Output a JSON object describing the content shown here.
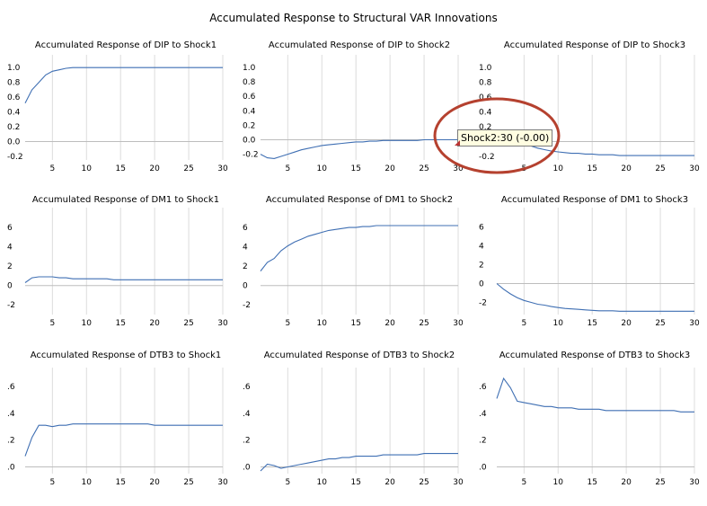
{
  "title": "Accumulated Response to Structural VAR Innovations",
  "tooltip": {
    "text": "Shock2:30  (-0.00)"
  },
  "colors": {
    "line": "#3f6fb3",
    "annotation": "#b5412f",
    "grid": "#dcdcdc",
    "tooltip_bg": "#fffde1"
  },
  "chart_data": [
    {
      "type": "line",
      "title": "Accumulated Response of DIP to Shock1",
      "x": [
        1,
        2,
        3,
        4,
        5,
        6,
        7,
        8,
        9,
        10,
        11,
        12,
        13,
        14,
        15,
        16,
        17,
        18,
        19,
        20,
        21,
        22,
        23,
        24,
        25,
        26,
        27,
        28,
        29,
        30
      ],
      "values": [
        0.52,
        0.7,
        0.8,
        0.9,
        0.95,
        0.97,
        0.99,
        1.0,
        1.0,
        1.0,
        1.0,
        1.0,
        1.0,
        1.0,
        1.0,
        1.0,
        1.0,
        1.0,
        1.0,
        1.0,
        1.0,
        1.0,
        1.0,
        1.0,
        1.0,
        1.0,
        1.0,
        1.0,
        1.0,
        1.0
      ],
      "ylim": [
        -0.25,
        1.1
      ],
      "yticks": [
        -0.2,
        0.0,
        0.2,
        0.4,
        0.6,
        0.8,
        1.0
      ],
      "ytick_labels": [
        "-0.2",
        "0.0",
        "0.2",
        "0.4",
        "0.6",
        "0.8",
        "1.0"
      ],
      "xticks": [
        5,
        10,
        15,
        20,
        25,
        30
      ]
    },
    {
      "type": "line",
      "title": "Accumulated Response of DIP to Shock2",
      "x": [
        1,
        2,
        3,
        4,
        5,
        6,
        7,
        8,
        9,
        10,
        11,
        12,
        13,
        14,
        15,
        16,
        17,
        18,
        19,
        20,
        21,
        22,
        23,
        24,
        25,
        26,
        27,
        28,
        29,
        30
      ],
      "values": [
        -0.2,
        -0.25,
        -0.26,
        -0.23,
        -0.2,
        -0.17,
        -0.14,
        -0.12,
        -0.1,
        -0.08,
        -0.07,
        -0.06,
        -0.05,
        -0.04,
        -0.03,
        -0.03,
        -0.02,
        -0.02,
        -0.01,
        -0.01,
        -0.01,
        -0.01,
        -0.01,
        -0.01,
        0.0,
        0.0,
        0.0,
        0.0,
        0.0,
        0.0
      ],
      "ylim": [
        -0.28,
        1.1
      ],
      "yticks": [
        -0.2,
        0.0,
        0.2,
        0.4,
        0.6,
        0.8,
        1.0
      ],
      "ytick_labels": [
        "-0.2",
        "0.0",
        "0.2",
        "0.4",
        "0.6",
        "0.8",
        "1.0"
      ],
      "xticks": [
        5,
        10,
        15,
        20,
        25,
        30
      ]
    },
    {
      "type": "line",
      "title": "Accumulated Response of DIP to Shock3",
      "x": [
        1,
        2,
        3,
        4,
        5,
        6,
        7,
        8,
        9,
        10,
        11,
        12,
        13,
        14,
        15,
        16,
        17,
        18,
        19,
        20,
        21,
        22,
        23,
        24,
        25,
        26,
        27,
        28,
        29,
        30
      ],
      "values": [
        0.1,
        0.08,
        0.05,
        0.02,
        -0.02,
        -0.06,
        -0.09,
        -0.11,
        -0.13,
        -0.14,
        -0.15,
        -0.16,
        -0.16,
        -0.17,
        -0.17,
        -0.18,
        -0.18,
        -0.18,
        -0.19,
        -0.19,
        -0.19,
        -0.19,
        -0.19,
        -0.19,
        -0.19,
        -0.19,
        -0.19,
        -0.19,
        -0.19,
        -0.19
      ],
      "ylim": [
        -0.25,
        1.1
      ],
      "yticks": [
        -0.2,
        0.0,
        0.2,
        0.4,
        0.6,
        0.8,
        1.0
      ],
      "ytick_labels": [
        "-0.2",
        "0.0",
        "0.2",
        "0.4",
        "0.6",
        "0.8",
        "1.0"
      ],
      "xticks": [
        5,
        10,
        15,
        20,
        25,
        30
      ]
    },
    {
      "type": "line",
      "title": "Accumulated Response of DM1 to Shock1",
      "x": [
        1,
        2,
        3,
        4,
        5,
        6,
        7,
        8,
        9,
        10,
        11,
        12,
        13,
        14,
        15,
        16,
        17,
        18,
        19,
        20,
        21,
        22,
        23,
        24,
        25,
        26,
        27,
        28,
        29,
        30
      ],
      "values": [
        0.3,
        0.8,
        0.9,
        0.9,
        0.9,
        0.8,
        0.8,
        0.7,
        0.7,
        0.7,
        0.7,
        0.7,
        0.7,
        0.6,
        0.6,
        0.6,
        0.6,
        0.6,
        0.6,
        0.6,
        0.6,
        0.6,
        0.6,
        0.6,
        0.6,
        0.6,
        0.6,
        0.6,
        0.6,
        0.6
      ],
      "ylim": [
        -3,
        7.5
      ],
      "yticks": [
        -2,
        0,
        2,
        4,
        6
      ],
      "ytick_labels": [
        "-2",
        "0",
        "2",
        "4",
        "6"
      ],
      "xticks": [
        5,
        10,
        15,
        20,
        25,
        30
      ]
    },
    {
      "type": "line",
      "title": "Accumulated Response of DM1 to Shock2",
      "x": [
        1,
        2,
        3,
        4,
        5,
        6,
        7,
        8,
        9,
        10,
        11,
        12,
        13,
        14,
        15,
        16,
        17,
        18,
        19,
        20,
        21,
        22,
        23,
        24,
        25,
        26,
        27,
        28,
        29,
        30
      ],
      "values": [
        1.5,
        2.4,
        2.8,
        3.6,
        4.1,
        4.5,
        4.8,
        5.1,
        5.3,
        5.5,
        5.7,
        5.8,
        5.9,
        6.0,
        6.0,
        6.1,
        6.1,
        6.2,
        6.2,
        6.2,
        6.2,
        6.2,
        6.2,
        6.2,
        6.2,
        6.2,
        6.2,
        6.2,
        6.2,
        6.2
      ],
      "ylim": [
        -3,
        7.5
      ],
      "yticks": [
        -2,
        0,
        2,
        4,
        6
      ],
      "ytick_labels": [
        "-2",
        "0",
        "2",
        "4",
        "6"
      ],
      "xticks": [
        5,
        10,
        15,
        20,
        25,
        30
      ]
    },
    {
      "type": "line",
      "title": "Accumulated Response of DM1 to Shock3",
      "x": [
        1,
        2,
        3,
        4,
        5,
        6,
        7,
        8,
        9,
        10,
        11,
        12,
        13,
        14,
        15,
        16,
        17,
        18,
        19,
        20,
        21,
        22,
        23,
        24,
        25,
        26,
        27,
        28,
        29,
        30
      ],
      "values": [
        0.0,
        -0.6,
        -1.1,
        -1.5,
        -1.8,
        -2.0,
        -2.2,
        -2.3,
        -2.45,
        -2.55,
        -2.65,
        -2.7,
        -2.75,
        -2.8,
        -2.85,
        -2.9,
        -2.9,
        -2.9,
        -2.95,
        -2.95,
        -2.95,
        -2.95,
        -2.95,
        -2.95,
        -2.95,
        -2.95,
        -2.95,
        -2.95,
        -2.95,
        -2.95
      ],
      "ylim": [
        -3.3,
        7.5
      ],
      "yticks": [
        -2,
        0,
        2,
        4,
        6
      ],
      "ytick_labels": [
        "-2",
        "0",
        "2",
        "4",
        "6"
      ],
      "xticks": [
        5,
        10,
        15,
        20,
        25,
        30
      ]
    },
    {
      "type": "line",
      "title": "Accumulated Response of DTB3 to Shock1",
      "x": [
        1,
        2,
        3,
        4,
        5,
        6,
        7,
        8,
        9,
        10,
        11,
        12,
        13,
        14,
        15,
        16,
        17,
        18,
        19,
        20,
        21,
        22,
        23,
        24,
        25,
        26,
        27,
        28,
        29,
        30
      ],
      "values": [
        0.08,
        0.22,
        0.31,
        0.31,
        0.3,
        0.31,
        0.31,
        0.32,
        0.32,
        0.32,
        0.32,
        0.32,
        0.32,
        0.32,
        0.32,
        0.32,
        0.32,
        0.32,
        0.32,
        0.31,
        0.31,
        0.31,
        0.31,
        0.31,
        0.31,
        0.31,
        0.31,
        0.31,
        0.31,
        0.31
      ],
      "ylim": [
        -0.05,
        0.7
      ],
      "yticks": [
        0.0,
        0.2,
        0.4,
        0.6
      ],
      "ytick_labels": [
        ".0",
        ".2",
        ".4",
        ".6"
      ],
      "xticks": [
        5,
        10,
        15,
        20,
        25,
        30
      ]
    },
    {
      "type": "line",
      "title": "Accumulated Response of DTB3 to Shock2",
      "x": [
        1,
        2,
        3,
        4,
        5,
        6,
        7,
        8,
        9,
        10,
        11,
        12,
        13,
        14,
        15,
        16,
        17,
        18,
        19,
        20,
        21,
        22,
        23,
        24,
        25,
        26,
        27,
        28,
        29,
        30
      ],
      "values": [
        -0.03,
        0.02,
        0.01,
        -0.01,
        0.0,
        0.01,
        0.02,
        0.03,
        0.04,
        0.05,
        0.06,
        0.06,
        0.07,
        0.07,
        0.08,
        0.08,
        0.08,
        0.08,
        0.09,
        0.09,
        0.09,
        0.09,
        0.09,
        0.09,
        0.1,
        0.1,
        0.1,
        0.1,
        0.1,
        0.1
      ],
      "ylim": [
        -0.05,
        0.7
      ],
      "yticks": [
        0.0,
        0.2,
        0.4,
        0.6
      ],
      "ytick_labels": [
        ".0",
        ".2",
        ".4",
        ".6"
      ],
      "xticks": [
        5,
        10,
        15,
        20,
        25,
        30
      ]
    },
    {
      "type": "line",
      "title": "Accumulated Response of DTB3 to Shock3",
      "x": [
        1,
        2,
        3,
        4,
        5,
        6,
        7,
        8,
        9,
        10,
        11,
        12,
        13,
        14,
        15,
        16,
        17,
        18,
        19,
        20,
        21,
        22,
        23,
        24,
        25,
        26,
        27,
        28,
        29,
        30
      ],
      "values": [
        0.51,
        0.66,
        0.59,
        0.49,
        0.48,
        0.47,
        0.46,
        0.45,
        0.45,
        0.44,
        0.44,
        0.44,
        0.43,
        0.43,
        0.43,
        0.43,
        0.42,
        0.42,
        0.42,
        0.42,
        0.42,
        0.42,
        0.42,
        0.42,
        0.42,
        0.42,
        0.42,
        0.41,
        0.41,
        0.41
      ],
      "ylim": [
        -0.05,
        0.7
      ],
      "yticks": [
        0.0,
        0.2,
        0.4,
        0.6
      ],
      "ytick_labels": [
        ".0",
        ".2",
        ".4",
        ".6"
      ],
      "xticks": [
        5,
        10,
        15,
        20,
        25,
        30
      ]
    }
  ]
}
